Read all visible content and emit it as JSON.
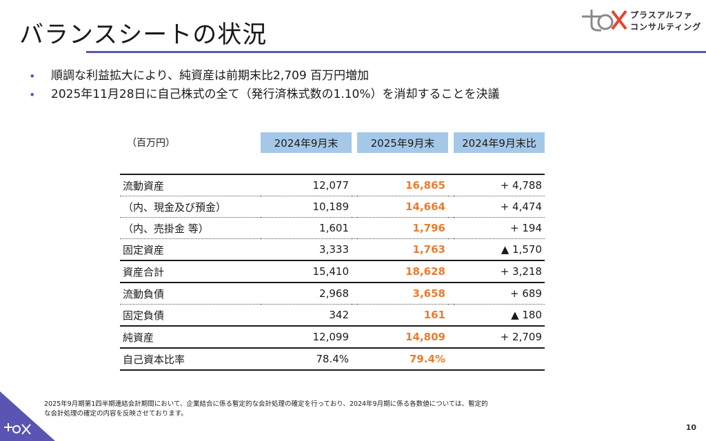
{
  "page": {
    "title": "バランスシートの状況",
    "page_number": "10"
  },
  "logo": {
    "line1": "プラスアルファ",
    "line2": "コンサルティング",
    "mark_color": "#e8432e"
  },
  "bullets": [
    "順調な利益拡大により、純資産は前期末比2,709 百万円増加",
    "2025年11月28日に自己株式の全て（発行済株式数の1.10%）を消却することを決議"
  ],
  "table": {
    "unit": "（百万円）",
    "headers": [
      "2024年9月末",
      "2025年9月末",
      "2024年9月末比"
    ],
    "rows": [
      {
        "label": "流動資産",
        "prev": "12,077",
        "curr": "16,865",
        "diff": "+ 4,788"
      },
      {
        "label": "（内、現金及び預金）",
        "prev": "10,189",
        "curr": "14,664",
        "diff": "+ 4,474"
      },
      {
        "label": "（内、売掛金 等）",
        "prev": "1,601",
        "curr": "1,796",
        "diff": "+ 194"
      },
      {
        "label": "固定資産",
        "prev": "3,333",
        "curr": "1,763",
        "diff": "▲ 1,570"
      },
      {
        "label": "資産合計",
        "prev": "15,410",
        "curr": "18,628",
        "diff": "+ 3,218"
      },
      {
        "label": "流動負債",
        "prev": "2,968",
        "curr": "3,658",
        "diff": "+ 689"
      },
      {
        "label": "固定負債",
        "prev": "342",
        "curr": "161",
        "diff": "▲ 180"
      },
      {
        "label": "純資産",
        "prev": "12,099",
        "curr": "14,809",
        "diff": "+ 2,709"
      },
      {
        "label": "自己資本比率",
        "prev": "78.4%",
        "curr": "79.4%",
        "diff": ""
      }
    ]
  },
  "footnote": {
    "line1": "2025年9月期第1四半期連結会計期間において、企業結合に係る暫定的な会計処理の確定を行っており、2024年9月期に係る各数値については、暫定的",
    "line2": "な会計処理の確定の内容を反映させております。"
  },
  "colors": {
    "accent_orange": "#ec7b2c",
    "header_blue": "#a6c8e8",
    "rule_purple": "#5a55b3",
    "corner_purple": "#5a55b3"
  }
}
